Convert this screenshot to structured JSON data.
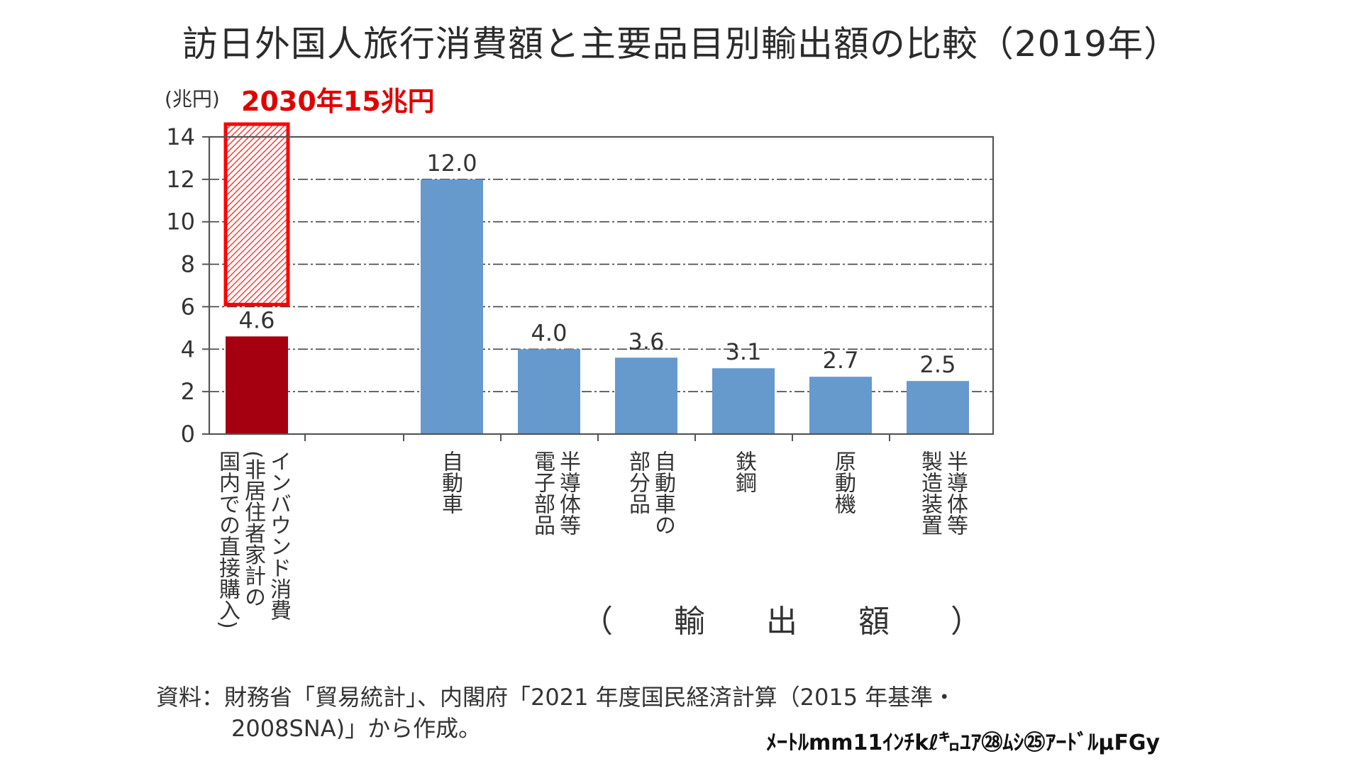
{
  "title": "訪日外国人旅行消費額と主要品目別輸出額の比較（2019年）",
  "unit_label": "(兆円)",
  "target_note": "2030年15兆円",
  "x_group_label": "（ 輸 出 額 ）",
  "source_line1": "資料：財務省「貿易統計」、内閣府「2021 年度国民経済計算（2015 年基準・",
  "source_line2": "2008SNA)」から作成。",
  "footer_mark": "ﾒｰﾄﾙmm11ｲﾝﾁkℓ㌔ﾕｱ㉘ﾑｼ㉕ｱｰﾄﾞﾙμFGy",
  "colors": {
    "inbound": "#a50010",
    "export": "#6699cc",
    "target_outline": "#ff0000",
    "target_hatch": "#ff0000",
    "axis": "#555555",
    "grid": "#444444"
  },
  "chart_data": {
    "type": "bar",
    "ylim": [
      0,
      14
    ],
    "yticks": [
      0,
      2,
      4,
      6,
      8,
      10,
      12,
      14
    ],
    "grid": "dash-dot horizontal",
    "categories": [
      "インバウンド消費\n(非居住者家計の\n国内での直接購入)",
      "自動車",
      "半導体等\n電子部品",
      "自動車の\n部分品",
      "鉄鋼",
      "原動機",
      "半導体等\n製造装置"
    ],
    "values": [
      4.6,
      12.0,
      4.0,
      3.6,
      3.1,
      2.7,
      2.5
    ],
    "value_labels": [
      "4.6",
      "12.0",
      "4.0",
      "3.6",
      "3.1",
      "2.7",
      "2.5"
    ],
    "target": {
      "category_index": 0,
      "from": 6.1,
      "to": 14.6
    }
  }
}
